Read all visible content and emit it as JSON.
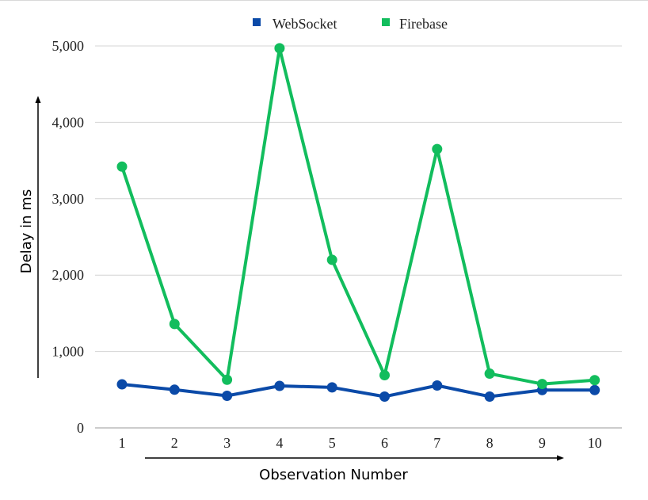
{
  "chart_data": {
    "type": "line",
    "categories": [
      "1",
      "2",
      "3",
      "4",
      "5",
      "6",
      "7",
      "8",
      "9",
      "10"
    ],
    "series": [
      {
        "name": "WebSocket",
        "color": "#0b4aa8",
        "values": [
          570,
          500,
          420,
          550,
          530,
          410,
          555,
          410,
          495,
          495
        ]
      },
      {
        "name": "Firebase",
        "color": "#12bd5d",
        "values": [
          3420,
          1360,
          630,
          4970,
          2200,
          690,
          3650,
          710,
          575,
          625
        ]
      }
    ],
    "ytick_labels": [
      "0",
      "1,000",
      "2,000",
      "3,000",
      "4,000",
      "5,000"
    ],
    "ytick_values": [
      0,
      1000,
      2000,
      3000,
      4000,
      5000
    ],
    "ylim": [
      0,
      5000
    ],
    "xlabel": "Observation Number",
    "ylabel": "Delay in ms",
    "legend_position": "top-center",
    "grid": true
  }
}
